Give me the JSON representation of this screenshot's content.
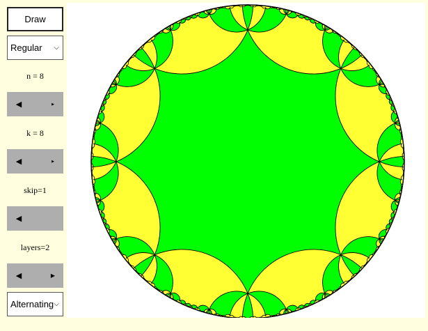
{
  "controls": {
    "draw_label": "Draw",
    "tiling_type": "Regular",
    "n_label": "n = 8",
    "n_value": 8,
    "k_label": "k = 8",
    "k_value": 8,
    "skip_label": "skip=1",
    "skip_value": 1,
    "layers_label": "layers=2",
    "layers_value": 2,
    "coloring": "Alternating"
  },
  "icons": {
    "scroll_left": "◀",
    "scroll_right": "▶",
    "dropdown": "chevron-down-icon"
  },
  "colors": {
    "page_bg": "#ffffe0",
    "tile_a": "#00ff00",
    "tile_b": "#ffff33",
    "edge": "#000000",
    "scrollbar": "#aeaeae"
  }
}
